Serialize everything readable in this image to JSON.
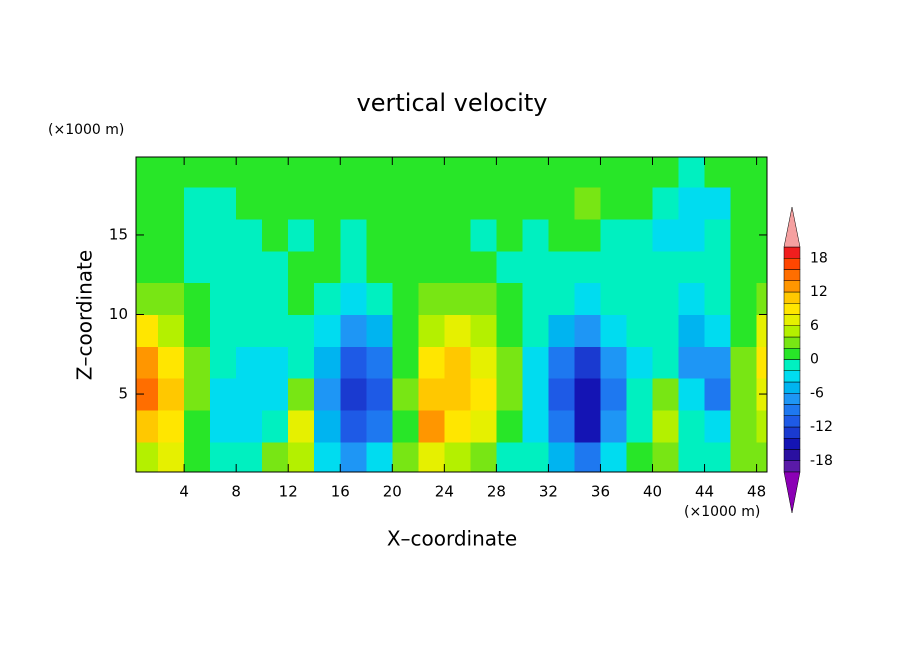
{
  "chart_data": {
    "type": "contour",
    "title": "vertical velocity",
    "x_label": "X–coordinate",
    "y_label": "Z–coordinate",
    "x_unit": "(×1000 m)",
    "y_unit": "(×1000 m)",
    "xlim": [
      0.3,
      48.8
    ],
    "xticks": [
      4,
      8,
      12,
      16,
      20,
      24,
      28,
      32,
      36,
      40,
      44,
      48
    ],
    "ylim": [
      0.1,
      19.9
    ],
    "yticks": [
      5,
      10,
      15
    ],
    "x": [
      1,
      3,
      5,
      7,
      9,
      11,
      13,
      15,
      17,
      19,
      21,
      23,
      25,
      27,
      29,
      31,
      33,
      35,
      37,
      39,
      41,
      43,
      45,
      47,
      49
    ],
    "y": [
      1,
      3,
      5,
      7,
      9,
      11,
      13,
      15,
      17,
      19
    ],
    "z": [
      [
        4,
        6,
        0,
        -2,
        -1,
        2,
        4,
        -4,
        -8,
        -4,
        2,
        6,
        4,
        2,
        -2,
        -2,
        -6,
        -10,
        -4,
        0,
        2,
        -2,
        -2,
        2,
        2
      ],
      [
        10,
        8,
        0,
        -3,
        -3,
        -2,
        6,
        -6,
        -12,
        -10,
        0,
        12,
        8,
        6,
        0,
        -4,
        -10,
        -16,
        -8,
        -2,
        4,
        -2,
        -4,
        2,
        4
      ],
      [
        14,
        10,
        2,
        -3,
        -4,
        -3,
        2,
        -8,
        -14,
        -12,
        2,
        10,
        10,
        8,
        2,
        -4,
        -12,
        -16,
        -10,
        -2,
        2,
        -4,
        -10,
        2,
        6
      ],
      [
        12,
        8,
        2,
        -2,
        -3,
        -3,
        -2,
        -6,
        -12,
        -10,
        0,
        8,
        10,
        6,
        2,
        -3,
        -10,
        -14,
        -8,
        -3,
        -2,
        -8,
        -8,
        2,
        8
      ],
      [
        8,
        4,
        0,
        -2,
        -2,
        -2,
        -2,
        -4,
        -8,
        -6,
        0,
        4,
        6,
        4,
        0,
        -2,
        -6,
        -8,
        -4,
        -2,
        -2,
        -6,
        -4,
        0,
        6
      ],
      [
        2,
        2,
        0,
        -2,
        -2,
        -2,
        0,
        -2,
        -4,
        -2,
        0,
        2,
        2,
        2,
        0,
        -2,
        -2,
        -4,
        -2,
        -2,
        -2,
        -4,
        -2,
        0,
        2
      ],
      [
        0,
        0,
        -1,
        -2,
        -1,
        -1,
        0,
        0,
        -2,
        0,
        1,
        0,
        1,
        0,
        -1,
        -1,
        -1,
        -1,
        -2,
        -1,
        -2,
        -2,
        -1,
        0,
        0
      ],
      [
        1,
        0,
        -2,
        -2,
        -1,
        0,
        -1,
        1,
        -1,
        1,
        1,
        1,
        0,
        -1,
        1,
        -1,
        0,
        1,
        -1,
        -1,
        -3,
        -3,
        -2,
        1,
        1
      ],
      [
        1,
        1,
        -1,
        -1,
        1,
        1,
        0,
        1,
        0,
        1,
        1,
        1,
        1,
        0,
        1,
        1,
        1,
        2,
        0,
        0,
        -2,
        -4,
        -3,
        1,
        1
      ],
      [
        1,
        1,
        1,
        1,
        1,
        1,
        1,
        1,
        1,
        1,
        1,
        1,
        1,
        1,
        1,
        1,
        1,
        1,
        1,
        1,
        0,
        -1,
        0,
        1,
        1
      ]
    ],
    "levels": [
      -20,
      -18,
      -16,
      -14,
      -12,
      -10,
      -8,
      -6,
      -4,
      -2,
      0,
      2,
      4,
      6,
      8,
      10,
      12,
      14,
      16,
      18,
      20
    ],
    "colorbar_ticks": [
      -18,
      -12,
      -6,
      0,
      6,
      12,
      18
    ],
    "colors": [
      "#8b00b5",
      "#5a1aa8",
      "#2a10a0",
      "#1414b4",
      "#1a3ad0",
      "#1e5ae6",
      "#1e78f0",
      "#1e96f5",
      "#00b4f0",
      "#00dcf0",
      "#00f0c0",
      "#28e628",
      "#78e614",
      "#b4f000",
      "#e6f000",
      "#ffe600",
      "#ffc800",
      "#ff9600",
      "#ff6e00",
      "#ff4600",
      "#f01e1e",
      "#f5a0a0"
    ]
  }
}
